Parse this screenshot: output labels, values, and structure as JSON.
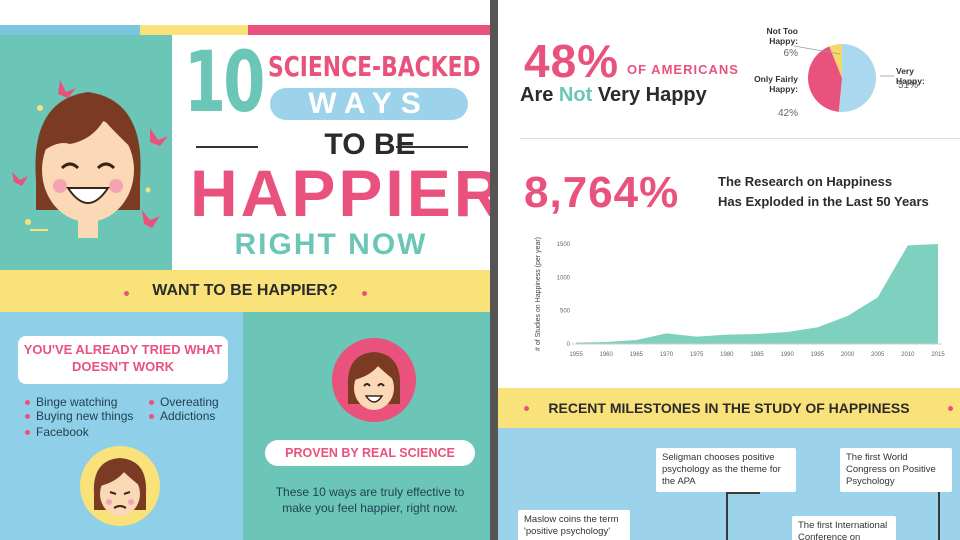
{
  "left": {
    "title_number": "10",
    "title_line1": "SCIENCE-BACKED",
    "title_line2": "WAYS",
    "title_line3": "TO BE",
    "title_line4": "HAPPIER",
    "title_line5": "RIGHT NOW",
    "want_banner": "WANT TO BE HAPPIER?",
    "tried_title": "YOU'VE ALREADY TRIED WHAT DOESN'T WORK",
    "tried_items": [
      "Binge watching",
      "Buying new things",
      "Facebook",
      "Overeating",
      "Addictions"
    ],
    "proven_title": "PROVEN BY REAL SCIENCE",
    "proven_desc": "These 10 ways are truly effective to make you feel happier, right now."
  },
  "right": {
    "stat1_value": "48%",
    "stat1_of": "OF AMERICANS",
    "stat1_line_pre": "Are",
    "stat1_line_not": "Not",
    "stat1_line_post": "Very Happy",
    "pie": {
      "slices": [
        {
          "label": "Very Happy:",
          "value": "51%",
          "fraction": 0.51,
          "color": "#a9d8ef"
        },
        {
          "label": "Only Fairly Happy:",
          "value": "42%",
          "fraction": 0.42,
          "color": "#e9527d"
        },
        {
          "label": "Not Too Happy:",
          "value": "6%",
          "fraction": 0.06,
          "color": "#f4d96a"
        }
      ]
    },
    "stat2_value": "8,764%",
    "stat2_line1": "The Research on Happiness",
    "stat2_line2": "Has Exploded in the Last 50 Years",
    "milestones_banner": "RECENT MILESTONES IN THE STUDY OF HAPPINESS",
    "milestones": [
      "Seligman chooses positive psychology as the theme for the APA",
      "The first World Congress on Positive Psychology",
      "Maslow coins the term 'positive psychology'",
      "The first International Conference on"
    ]
  },
  "chart_data": {
    "type": "area",
    "ylabel": "# of Studies on Happiness (per year)",
    "xlabel": "",
    "x": [
      1955,
      1960,
      1965,
      1970,
      1975,
      1980,
      1985,
      1990,
      1995,
      2000,
      2005,
      2010,
      2015
    ],
    "x_ticks": [
      "1955",
      "1960",
      "1965",
      "1970",
      "1975",
      "1980",
      "1985",
      "1990",
      "1995",
      "2000",
      "2005",
      "2010",
      "2015"
    ],
    "y_ticks": [
      "0",
      "500",
      "1000",
      "1500"
    ],
    "ylim": [
      0,
      1500
    ],
    "color": "#7fd1bf",
    "series": [
      {
        "values": [
          20,
          30,
          60,
          160,
          110,
          140,
          150,
          180,
          250,
          420,
          700,
          1480,
          1500
        ]
      }
    ]
  }
}
